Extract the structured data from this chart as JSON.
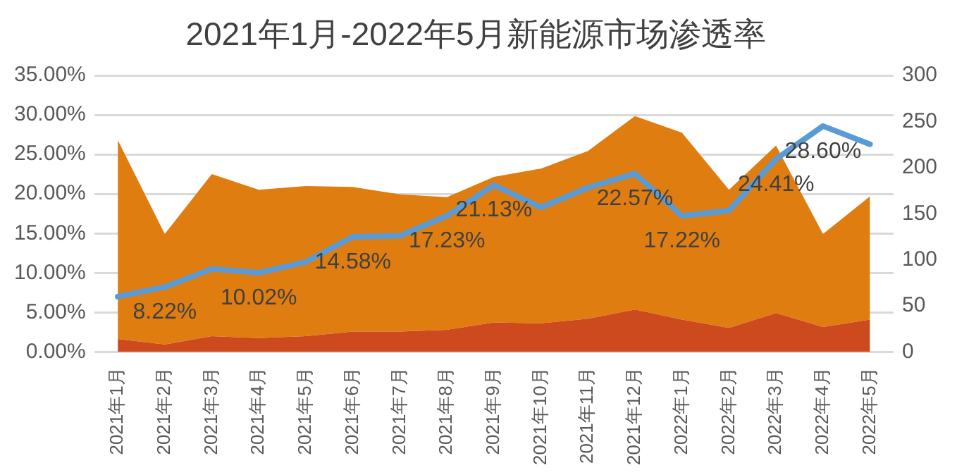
{
  "chart_data": {
    "type": "area",
    "title": "2021年1月-2022年5月新能源市场渗透率",
    "categories": [
      "2021年1月",
      "2021年2月",
      "2021年3月",
      "2021年4月",
      "2021年5月",
      "2021年6月",
      "2021年7月",
      "2021年8月",
      "2021年9月",
      "2021年10月",
      "2021年11月",
      "2021年12月",
      "2022年1月",
      "2022年2月",
      "2022年3月",
      "2022年4月",
      "2022年5月"
    ],
    "stacked": true,
    "grid": "y",
    "marker": "none",
    "series": [
      {
        "axis": "y2",
        "color": "#cc4a1e",
        "values": [
          14,
          8,
          17,
          15,
          17,
          22,
          22,
          24,
          32,
          31,
          36,
          46,
          35,
          26,
          42,
          27,
          35
        ]
      },
      {
        "axis": "y2",
        "color": "#e07d10",
        "values": [
          216,
          120,
          176,
          161,
          163,
          157,
          149,
          144,
          158,
          168,
          182,
          210,
          203,
          150,
          182,
          101,
          134
        ]
      },
      {
        "type": "line",
        "axis": "y",
        "color": "#5b9bd5",
        "values": [
          7.0,
          8.22,
          10.5,
          10.02,
          11.4,
          14.58,
          14.7,
          17.23,
          21.13,
          18.3,
          20.8,
          22.57,
          17.22,
          17.9,
          24.41,
          28.6,
          26.3
        ],
        "value_labels": [
          null,
          "8.22%",
          null,
          "10.02%",
          null,
          "14.58%",
          null,
          "17.23%",
          "21.13%",
          null,
          null,
          "22.57%",
          "17.22%",
          null,
          "24.41%",
          "28.60%",
          null
        ]
      }
    ],
    "ylim": [
      0,
      35
    ],
    "yticks": [
      {
        "value": 0,
        "label": "0.00%"
      },
      {
        "value": 5,
        "label": "5.00%"
      },
      {
        "value": 10,
        "label": "10.00%"
      },
      {
        "value": 15,
        "label": "15.00%"
      },
      {
        "value": 20,
        "label": "20.00%"
      },
      {
        "value": 25,
        "label": "25.00%"
      },
      {
        "value": 30,
        "label": "30.00%"
      },
      {
        "value": 35,
        "label": "35.00%"
      }
    ],
    "y2lim": [
      0,
      300
    ],
    "y2ticks": [
      0,
      50,
      100,
      150,
      200,
      250,
      300
    ]
  }
}
